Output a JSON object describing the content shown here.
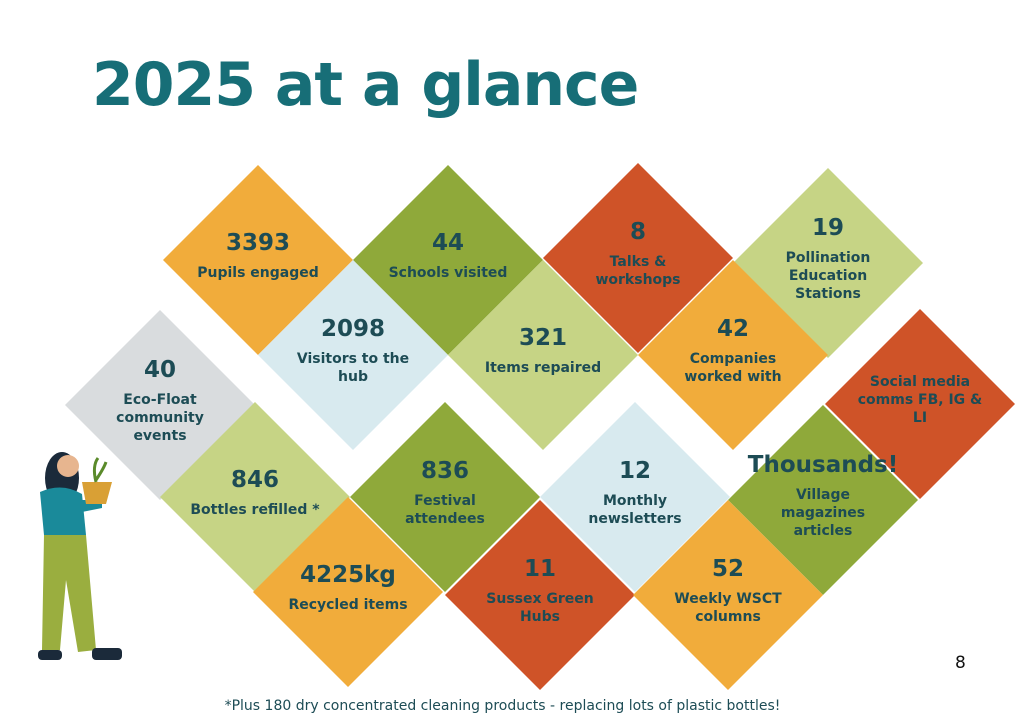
{
  "title": "2025 at a glance",
  "tiles": [
    {
      "number": 3393,
      "label": "Pupils engaged",
      "color": "#f1ac3b"
    },
    {
      "number": 44,
      "label": "Schools visited",
      "color": "#8fa93a"
    },
    {
      "number": 8,
      "label": "Talks & workshops",
      "color": "#cf5328"
    },
    {
      "number": 19,
      "label": "Pollination Education Stations",
      "color": "#c6d485"
    },
    {
      "number": 2098,
      "label": "Visitors to the hub",
      "color": "#d8eaef"
    },
    {
      "number": 321,
      "label": "Items repaired",
      "color": "#c6d485"
    },
    {
      "number": 42,
      "label": "Companies worked with",
      "color": "#f1ac3b"
    },
    {
      "label": "Social media comms FB, IG & LI",
      "color": "#cf5328"
    },
    {
      "number": 40,
      "label": "Eco-Float community events",
      "color": "#d9dcde"
    },
    {
      "number": 846,
      "label": "Bottles refilled *",
      "color": "#c6d485"
    },
    {
      "number": 836,
      "label": "Festival attendees",
      "color": "#8fa93a"
    },
    {
      "number": 12,
      "label": "Monthly newsletters",
      "color": "#d8eaef"
    },
    {
      "number": "Thousands!",
      "label": "Village magazines articles",
      "color": "#8fa93a"
    },
    {
      "number": "4225kg",
      "label": "Recycled items",
      "color": "#f1ac3b"
    },
    {
      "number": 11,
      "label": "Sussex Green Hubs",
      "color": "#cf5328"
    },
    {
      "number": 52,
      "label": "Weekly WSCT columns",
      "color": "#f1ac3b"
    }
  ],
  "footnote": "*Plus 180 dry concentrated cleaning products - replacing lots of plastic bottles!",
  "page_number": "8"
}
